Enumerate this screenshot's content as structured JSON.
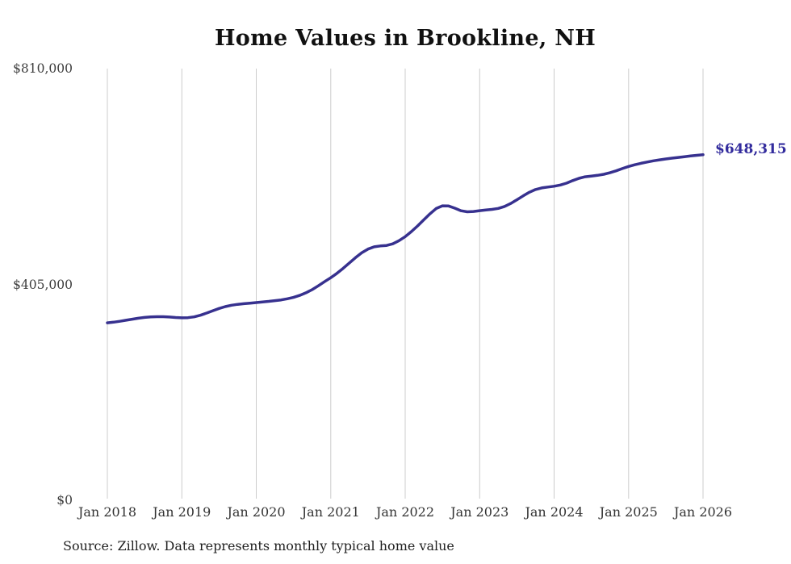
{
  "title": "Home Values in Brookline, NH",
  "source_note": "Source: Zillow. Data represents monthly typical home value",
  "colors": {
    "line": "#37318f",
    "end_label": "#322b9d",
    "grid": "#cccccc",
    "axis_text": "#333333",
    "title_text": "#111111"
  },
  "chart_data": {
    "type": "line",
    "title": "Home Values in Brookline, NH",
    "xlabel": "",
    "ylabel": "",
    "ylim": [
      0,
      810000
    ],
    "grid": "vertical-only",
    "legend": "none",
    "end_label": "$648,315",
    "end_value": 648315,
    "yticks": [
      {
        "label": "$0",
        "value": 0
      },
      {
        "label": "$405,000",
        "value": 405000
      },
      {
        "label": "$810,000",
        "value": 810000
      }
    ],
    "xticks": [
      "Jan 2018",
      "Jan 2019",
      "Jan 2020",
      "Jan 2021",
      "Jan 2022",
      "Jan 2023",
      "Jan 2024",
      "Jan 2025",
      "Jan 2026"
    ],
    "x": [
      "2018-01",
      "2018-02",
      "2018-03",
      "2018-04",
      "2018-05",
      "2018-06",
      "2018-07",
      "2018-08",
      "2018-09",
      "2018-10",
      "2018-11",
      "2018-12",
      "2019-01",
      "2019-02",
      "2019-03",
      "2019-04",
      "2019-05",
      "2019-06",
      "2019-07",
      "2019-08",
      "2019-09",
      "2019-10",
      "2019-11",
      "2019-12",
      "2020-01",
      "2020-02",
      "2020-03",
      "2020-04",
      "2020-05",
      "2020-06",
      "2020-07",
      "2020-08",
      "2020-09",
      "2020-10",
      "2020-11",
      "2020-12",
      "2021-01",
      "2021-02",
      "2021-03",
      "2021-04",
      "2021-05",
      "2021-06",
      "2021-07",
      "2021-08",
      "2021-09",
      "2021-10",
      "2021-11",
      "2021-12",
      "2022-01",
      "2022-02",
      "2022-03",
      "2022-04",
      "2022-05",
      "2022-06",
      "2022-07",
      "2022-08",
      "2022-09",
      "2022-10",
      "2022-11",
      "2022-12",
      "2023-01",
      "2023-02",
      "2023-03",
      "2023-04",
      "2023-05",
      "2023-06",
      "2023-07",
      "2023-08",
      "2023-09",
      "2023-10",
      "2023-11",
      "2023-12",
      "2024-01",
      "2024-02",
      "2024-03",
      "2024-04",
      "2024-05",
      "2024-06",
      "2024-07",
      "2024-08",
      "2024-09",
      "2024-10",
      "2024-11",
      "2024-12",
      "2025-01",
      "2025-02",
      "2025-03",
      "2025-04",
      "2025-05",
      "2025-06",
      "2025-07",
      "2025-08",
      "2025-09",
      "2025-10",
      "2025-11",
      "2025-12",
      "2026-01"
    ],
    "values": [
      333000,
      334200,
      335800,
      337800,
      339800,
      341600,
      343100,
      344100,
      344500,
      344400,
      343800,
      343000,
      342300,
      342600,
      344200,
      347200,
      351200,
      355600,
      359900,
      363400,
      365900,
      367600,
      368800,
      369900,
      371000,
      372100,
      373200,
      374500,
      376000,
      378000,
      380700,
      384400,
      389200,
      395200,
      402400,
      410200,
      417500,
      425800,
      435200,
      445200,
      455200,
      464300,
      471300,
      475500,
      477200,
      478200,
      481200,
      487000,
      494700,
      504100,
      514800,
      526300,
      537600,
      547400,
      552500,
      552100,
      548000,
      543200,
      541300,
      541900,
      543400,
      544600,
      545800,
      547600,
      551200,
      556800,
      563800,
      571100,
      577900,
      583100,
      586100,
      587800,
      589300,
      591500,
      595000,
      599800,
      604100,
      606900,
      608400,
      609700,
      611600,
      614500,
      618200,
      622400,
      626400,
      629600,
      632300,
      634700,
      636900,
      638800,
      640400,
      641900,
      643300,
      644700,
      646000,
      647200,
      648315
    ]
  }
}
